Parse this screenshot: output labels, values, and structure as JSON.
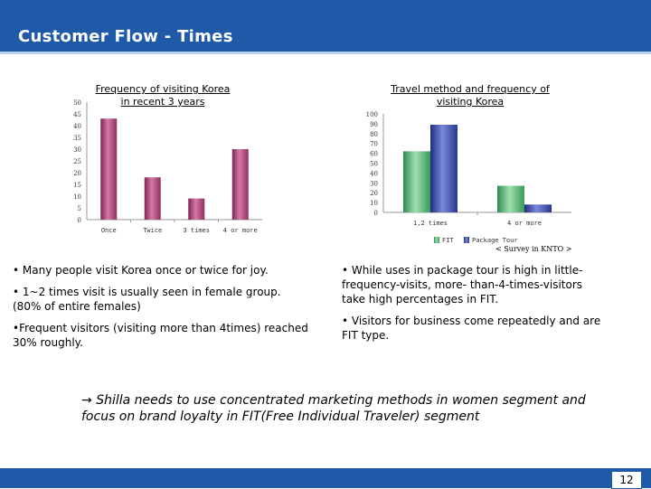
{
  "slide": {
    "title": "Customer Flow - Times",
    "page_number": "12",
    "source_note": "< Survey in KNTO >",
    "left_bullets": [
      "• Many people visit Korea once or twice for joy.",
      "• 1~2 times visit is usually seen in female group. (80% of entire females)",
      "•Frequent visitors (visiting more than 4times) reached 30% roughly."
    ],
    "right_bullets": [
      "• While uses in package tour is high in little-frequency-visits, more- than-4-times-visitors take high percentages in FIT.",
      "• Visitors for business come repeatedly and are FIT type."
    ],
    "conclusion_arrow": "→",
    "conclusion": "Shilla needs to use concentrated marketing methods in women segment and focus on brand loyalty in FIT(Free Individual Traveler) segment",
    "colors": {
      "accent": "#1f5aa8",
      "bar_purple": "#b0487a",
      "bar_green": "#5fb87a",
      "bar_blue": "#3a4faa"
    }
  },
  "chart_data": [
    {
      "type": "bar",
      "title": "Frequency of visiting Korea in recent 3 years",
      "categories": [
        "Once",
        "Twice",
        "3 times",
        "4 or more"
      ],
      "values": [
        43,
        18,
        9,
        30
      ],
      "ylim": [
        0,
        50
      ],
      "yticks": [
        0,
        5,
        10,
        15,
        20,
        25,
        30,
        35,
        40,
        45,
        50
      ],
      "xlabel": "",
      "ylabel": ""
    },
    {
      "type": "bar",
      "title": "Travel method and frequency of visiting Korea",
      "categories": [
        "1,2 times",
        "4 or more"
      ],
      "series": [
        {
          "name": "FIT",
          "values": [
            62,
            27
          ]
        },
        {
          "name": "Package Tour",
          "values": [
            89,
            8
          ]
        }
      ],
      "ylim": [
        0,
        100
      ],
      "yticks": [
        0,
        10,
        20,
        30,
        40,
        50,
        60,
        70,
        80,
        90,
        100
      ],
      "legend": "bottom",
      "xlabel": "",
      "ylabel": ""
    }
  ]
}
